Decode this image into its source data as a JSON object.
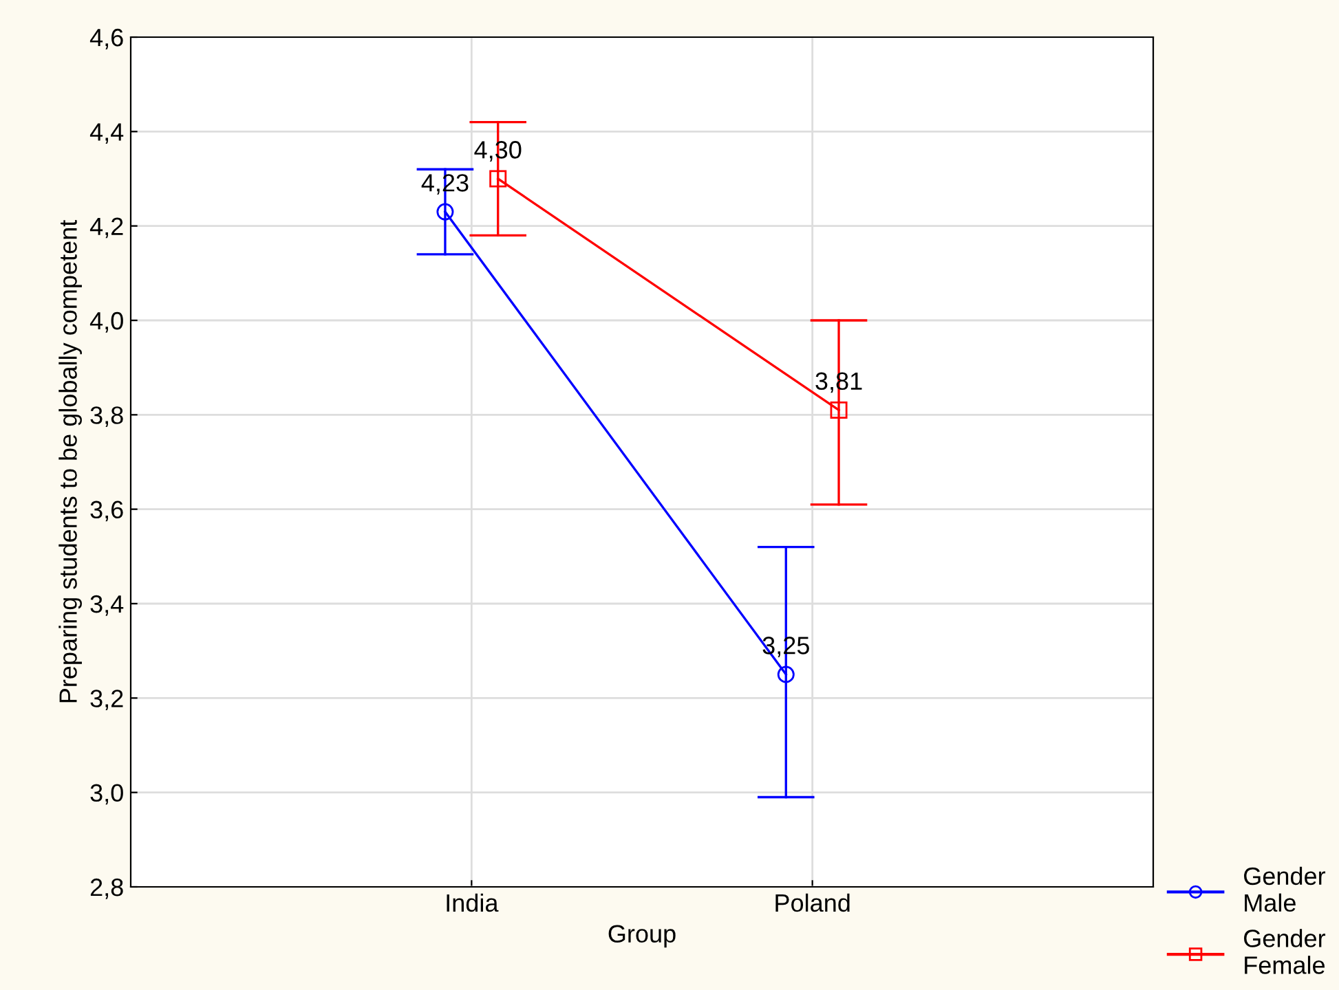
{
  "chart_data": {
    "type": "line",
    "xlabel": "Group",
    "ylabel": "Preparing students to be globally competent",
    "categories": [
      "India",
      "Poland"
    ],
    "series": [
      {
        "name": "Gender\nMale",
        "color": "#0000ff",
        "marker": "circle",
        "values": [
          4.23,
          3.25
        ],
        "errors": [
          [
            4.14,
            4.32
          ],
          [
            2.99,
            3.52
          ]
        ],
        "value_labels": [
          "4,23",
          "3,25"
        ]
      },
      {
        "name": "Gender\nFemale",
        "color": "#ff0000",
        "marker": "square",
        "values": [
          4.3,
          3.81
        ],
        "errors": [
          [
            4.18,
            4.42
          ],
          [
            3.61,
            4.0
          ]
        ],
        "value_labels": [
          "4,30",
          "3,81"
        ]
      }
    ],
    "ylim": [
      2.8,
      4.6
    ],
    "yticks": [
      {
        "value": 2.8,
        "label": "2,8"
      },
      {
        "value": 3.0,
        "label": "3,0"
      },
      {
        "value": 3.2,
        "label": "3,2"
      },
      {
        "value": 3.4,
        "label": "3,4"
      },
      {
        "value": 3.6,
        "label": "3,6"
      },
      {
        "value": 3.8,
        "label": "3,8"
      },
      {
        "value": 4.0,
        "label": "4,0"
      },
      {
        "value": 4.2,
        "label": "4,2"
      },
      {
        "value": 4.4,
        "label": "4,4"
      },
      {
        "value": 4.6,
        "label": "4,6"
      }
    ],
    "grid": true,
    "legend": "bottom right",
    "line_style": "solid"
  }
}
